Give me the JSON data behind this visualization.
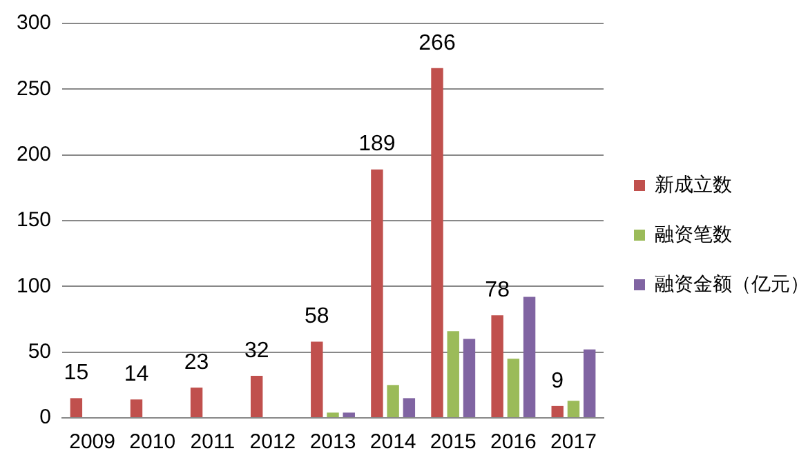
{
  "chart_data": {
    "type": "bar",
    "categories": [
      "2009",
      "2010",
      "2011",
      "2012",
      "2013",
      "2014",
      "2015",
      "2016",
      "2017"
    ],
    "series": [
      {
        "name": "新成立数",
        "color": "#c0504d",
        "values": [
          15,
          14,
          23,
          32,
          58,
          189,
          266,
          78,
          9
        ],
        "value_labels": [
          "15",
          "14",
          "23",
          "32",
          "58",
          "189",
          "266",
          "78",
          "9"
        ]
      },
      {
        "name": "融资笔数",
        "color": "#9bbb59",
        "values": [
          null,
          null,
          null,
          null,
          4,
          25,
          66,
          45,
          13
        ]
      },
      {
        "name": "融资金额（亿元）",
        "color": "#8064a2",
        "values": [
          null,
          null,
          null,
          null,
          4,
          15,
          60,
          92,
          52
        ]
      }
    ],
    "ylim": [
      0,
      300
    ],
    "yticks": [
      0,
      50,
      100,
      150,
      200,
      250,
      300
    ],
    "grid": "y",
    "legend": "right"
  }
}
